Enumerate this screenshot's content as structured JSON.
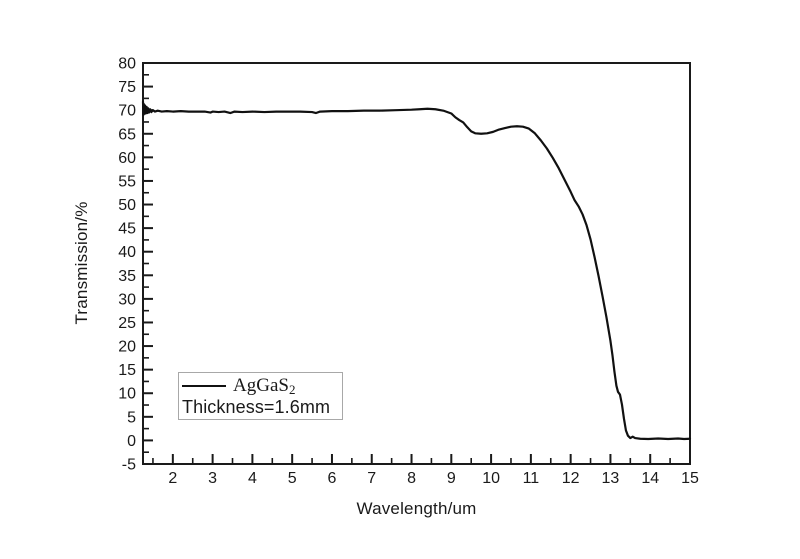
{
  "figure": {
    "background": "#ffffff",
    "curve_color": "#111111",
    "axis_color": "#1a1a1a",
    "legend": {
      "series_label_main": "AgGaS",
      "series_label_sub": "2",
      "thickness_label": "Thickness=1.6mm",
      "border_color": "#a8a8a8"
    }
  },
  "chart_data": {
    "type": "line",
    "title": "",
    "xlabel": "Wavelength/um",
    "ylabel": "Transmission/%",
    "xlim": [
      1.25,
      15
    ],
    "ylim": [
      -5,
      80
    ],
    "x_major_ticks": [
      2,
      3,
      4,
      5,
      6,
      7,
      8,
      9,
      10,
      11,
      12,
      13,
      14,
      15
    ],
    "x_minor_ticks": [
      1.5,
      2.5,
      3.5,
      4.5,
      5.5,
      6.5,
      7.5,
      8.5,
      9.5,
      10.5,
      11.5,
      12.5,
      13.5,
      14.5
    ],
    "y_major_ticks": [
      -5,
      0,
      5,
      10,
      15,
      20,
      25,
      30,
      35,
      40,
      45,
      50,
      55,
      60,
      65,
      70,
      75,
      80
    ],
    "y_minor_ticks": [
      -2.5,
      2.5,
      7.5,
      12.5,
      17.5,
      22.5,
      27.5,
      32.5,
      37.5,
      42.5,
      47.5,
      52.5,
      57.5,
      62.5,
      67.5,
      72.5,
      77.5
    ],
    "grid": false,
    "legend_position": "inside-lower-left",
    "series": [
      {
        "name": "AgGaS2",
        "annotation": "Thickness=1.6mm",
        "points": [
          [
            1.25,
            71.8
          ],
          [
            1.26,
            69.0
          ],
          [
            1.27,
            71.3
          ],
          [
            1.28,
            69.2
          ],
          [
            1.3,
            71.0
          ],
          [
            1.32,
            69.3
          ],
          [
            1.34,
            70.7
          ],
          [
            1.36,
            69.4
          ],
          [
            1.38,
            70.4
          ],
          [
            1.4,
            69.5
          ],
          [
            1.43,
            70.2
          ],
          [
            1.46,
            69.6
          ],
          [
            1.5,
            70.0
          ],
          [
            1.55,
            69.7
          ],
          [
            1.62,
            69.9
          ],
          [
            1.72,
            69.7
          ],
          [
            1.85,
            69.8
          ],
          [
            2.0,
            69.7
          ],
          [
            2.2,
            69.8
          ],
          [
            2.4,
            69.7
          ],
          [
            2.6,
            69.7
          ],
          [
            2.8,
            69.7
          ],
          [
            2.95,
            69.5
          ],
          [
            3.0,
            69.7
          ],
          [
            3.15,
            69.6
          ],
          [
            3.3,
            69.7
          ],
          [
            3.45,
            69.4
          ],
          [
            3.55,
            69.7
          ],
          [
            3.75,
            69.6
          ],
          [
            4.0,
            69.7
          ],
          [
            4.3,
            69.6
          ],
          [
            4.6,
            69.7
          ],
          [
            4.9,
            69.7
          ],
          [
            5.2,
            69.7
          ],
          [
            5.5,
            69.6
          ],
          [
            5.6,
            69.4
          ],
          [
            5.7,
            69.7
          ],
          [
            6.0,
            69.8
          ],
          [
            6.4,
            69.8
          ],
          [
            6.8,
            69.9
          ],
          [
            7.2,
            69.9
          ],
          [
            7.6,
            70.0
          ],
          [
            8.0,
            70.1
          ],
          [
            8.2,
            70.2
          ],
          [
            8.4,
            70.3
          ],
          [
            8.6,
            70.2
          ],
          [
            8.8,
            69.9
          ],
          [
            9.0,
            69.3
          ],
          [
            9.1,
            68.5
          ],
          [
            9.2,
            67.9
          ],
          [
            9.3,
            67.4
          ],
          [
            9.4,
            66.4
          ],
          [
            9.5,
            65.5
          ],
          [
            9.6,
            65.1
          ],
          [
            9.75,
            65.0
          ],
          [
            9.9,
            65.1
          ],
          [
            10.05,
            65.4
          ],
          [
            10.2,
            65.9
          ],
          [
            10.35,
            66.2
          ],
          [
            10.5,
            66.5
          ],
          [
            10.65,
            66.6
          ],
          [
            10.8,
            66.5
          ],
          [
            10.95,
            66.1
          ],
          [
            11.1,
            65.1
          ],
          [
            11.25,
            63.6
          ],
          [
            11.4,
            61.9
          ],
          [
            11.55,
            59.9
          ],
          [
            11.7,
            57.7
          ],
          [
            11.85,
            55.2
          ],
          [
            12.0,
            52.7
          ],
          [
            12.1,
            50.9
          ],
          [
            12.2,
            49.6
          ],
          [
            12.3,
            47.9
          ],
          [
            12.4,
            45.6
          ],
          [
            12.5,
            42.6
          ],
          [
            12.6,
            38.9
          ],
          [
            12.7,
            34.9
          ],
          [
            12.8,
            30.6
          ],
          [
            12.9,
            26.1
          ],
          [
            13.0,
            21.1
          ],
          [
            13.05,
            18.1
          ],
          [
            13.1,
            14.6
          ],
          [
            13.15,
            11.6
          ],
          [
            13.19,
            10.3
          ],
          [
            13.24,
            9.7
          ],
          [
            13.29,
            7.6
          ],
          [
            13.34,
            4.6
          ],
          [
            13.39,
            2.1
          ],
          [
            13.44,
            1.0
          ],
          [
            13.5,
            0.5
          ],
          [
            13.56,
            0.8
          ],
          [
            13.62,
            0.5
          ],
          [
            13.75,
            0.35
          ],
          [
            13.95,
            0.3
          ],
          [
            14.2,
            0.4
          ],
          [
            14.45,
            0.3
          ],
          [
            14.7,
            0.4
          ],
          [
            14.85,
            0.3
          ],
          [
            15.0,
            0.35
          ]
        ]
      }
    ]
  }
}
